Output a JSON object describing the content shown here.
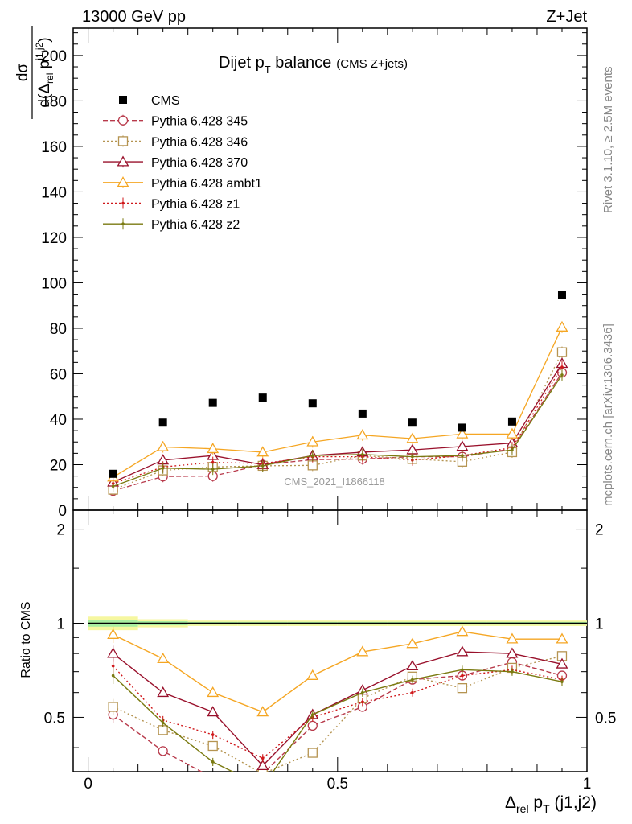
{
  "header": {
    "energy_label": "13000 GeV pp",
    "process_label": "Z+Jet"
  },
  "side_labels": {
    "rivet": "Rivet 3.1.10, ≥ 2.5M events",
    "mcplots": "mcplots.cern.ch [arXiv:1306.3436]"
  },
  "watermark": "CMS_2021_I1866118",
  "chart_data": [
    {
      "panel": "main",
      "type": "scatter",
      "title_main": "Dijet p",
      "title_sub": "T",
      "title_rest": " balance",
      "title_small": "(CMS Z+jets)",
      "ylabel": "dσ / d(Δrel pT j1,j2)",
      "ylim": [
        0,
        212
      ],
      "xlim": [
        -0.03,
        1.0
      ],
      "yticks": [
        0,
        20,
        40,
        60,
        80,
        100,
        120,
        140,
        160,
        180,
        200
      ],
      "x": [
        0.05,
        0.15,
        0.25,
        0.35,
        0.45,
        0.55,
        0.65,
        0.75,
        0.85,
        0.95
      ],
      "series": [
        {
          "name": "CMS",
          "color": "#000000",
          "marker": "square-filled",
          "line": "none",
          "values": [
            16,
            38.5,
            47.2,
            49.5,
            47,
            42.5,
            38.5,
            36.3,
            39,
            94.5
          ]
        },
        {
          "name": "Pythia 6.428 345",
          "color": "#b83a4b",
          "marker": "circle-open",
          "line": "dashed",
          "values": [
            8.5,
            14.8,
            15,
            20,
            22.2,
            22.5,
            23.5,
            23.5,
            27,
            60.5
          ]
        },
        {
          "name": "Pythia 6.428 346",
          "color": "#b59451",
          "marker": "square-open",
          "line": "dotted",
          "values": [
            9,
            17.5,
            19,
            19.5,
            19.7,
            24,
            22.5,
            21.3,
            25.5,
            69.5
          ]
        },
        {
          "name": "Pythia 6.428 370",
          "color": "#99102b",
          "marker": "triangle-open",
          "line": "solid",
          "values": [
            12.3,
            22,
            24,
            20,
            24,
            25.5,
            26.5,
            28,
            29.5,
            64.5
          ]
        },
        {
          "name": "Pythia 6.428 ambt1",
          "color": "#f5a623",
          "marker": "triangle-open",
          "line": "solid",
          "values": [
            14.5,
            27.8,
            27,
            25.5,
            30,
            33,
            31.5,
            33.5,
            33.5,
            80.5
          ]
        },
        {
          "name": "Pythia 6.428 z1",
          "color": "#d0181b",
          "marker": "dot",
          "line": "dotted",
          "values": [
            11.7,
            19,
            21,
            20.5,
            23.5,
            23.5,
            22,
            24,
            27.5,
            63
          ]
        },
        {
          "name": "Pythia 6.428 z2",
          "color": "#7a7a10",
          "marker": "dot",
          "line": "solid",
          "values": [
            10.5,
            18.5,
            18,
            19.5,
            24,
            24.5,
            23.5,
            24,
            26.5,
            59.5
          ]
        }
      ]
    },
    {
      "panel": "ratio",
      "type": "line",
      "ylabel": "Ratio to CMS",
      "xlabel_main": "Δ",
      "xlabel_sub1": "rel",
      "xlabel_mid": " p",
      "xlabel_sub2": "T",
      "xlabel_rest": " (j1,j2)",
      "ylim": [
        0.335,
        2.3
      ],
      "ylog": true,
      "yticks": [
        0.5,
        1,
        2
      ],
      "ytick_labels": [
        "0.5",
        "1",
        "2"
      ],
      "xticks": [
        0,
        0.5,
        1
      ],
      "xtick_labels": [
        "0",
        "0.5",
        "1"
      ],
      "band_colors": {
        "outer": "#f6f7a0",
        "inner": "#a8eea0"
      },
      "series": [
        {
          "name": "Pythia 6.428 345",
          "values": [
            0.51,
            0.39,
            0.32,
            0.33,
            0.47,
            0.54,
            0.66,
            0.68,
            0.75,
            0.68
          ]
        },
        {
          "name": "Pythia 6.428 346",
          "values": [
            0.54,
            0.455,
            0.405,
            0.33,
            0.385,
            0.575,
            0.675,
            0.62,
            0.72,
            0.785
          ]
        },
        {
          "name": "Pythia 6.428 370",
          "values": [
            0.8,
            0.6,
            0.52,
            0.35,
            0.51,
            0.61,
            0.73,
            0.81,
            0.8,
            0.74
          ]
        },
        {
          "name": "Pythia 6.428 ambt1",
          "values": [
            0.92,
            0.77,
            0.6,
            0.52,
            0.68,
            0.81,
            0.86,
            0.94,
            0.89,
            0.89
          ]
        },
        {
          "name": "Pythia 6.428 z1",
          "values": [
            0.73,
            0.49,
            0.44,
            0.37,
            0.5,
            0.56,
            0.6,
            0.68,
            0.71,
            0.66
          ]
        },
        {
          "name": "Pythia 6.428 z2",
          "values": [
            0.68,
            0.48,
            0.36,
            0.3,
            0.51,
            0.6,
            0.66,
            0.71,
            0.7,
            0.65
          ]
        }
      ]
    }
  ]
}
